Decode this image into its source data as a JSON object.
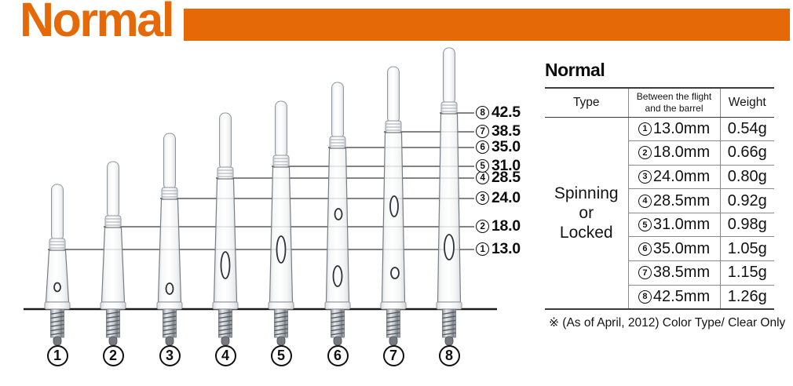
{
  "header": {
    "title": "Normal"
  },
  "colors": {
    "accent": "#E66908"
  },
  "diagram": {
    "shafts": [
      {
        "num": "1",
        "size_mm": 13.0,
        "size_label": "13.0"
      },
      {
        "num": "2",
        "size_mm": 18.0,
        "size_label": "18.0"
      },
      {
        "num": "3",
        "size_mm": 24.0,
        "size_label": "24.0"
      },
      {
        "num": "4",
        "size_mm": 28.5,
        "size_label": "28.5"
      },
      {
        "num": "5",
        "size_mm": 31.0,
        "size_label": "31.0"
      },
      {
        "num": "6",
        "size_mm": 35.0,
        "size_label": "35.0"
      },
      {
        "num": "7",
        "size_mm": 38.5,
        "size_label": "38.5"
      },
      {
        "num": "8",
        "size_mm": 42.5,
        "size_label": "42.5"
      }
    ]
  },
  "spec_table": {
    "title": "Normal",
    "columns": [
      {
        "label": "Type"
      },
      {
        "label": "Between the flight and the barrel",
        "lines": [
          "Between the flight",
          "and the barrel"
        ]
      },
      {
        "label": "Weight"
      }
    ],
    "type_lines": [
      "Spinning",
      "or",
      "Locked"
    ],
    "rows": [
      {
        "num": "1",
        "size": "13.0mm",
        "weight": "0.54g"
      },
      {
        "num": "2",
        "size": "18.0mm",
        "weight": "0.66g"
      },
      {
        "num": "3",
        "size": "24.0mm",
        "weight": "0.80g"
      },
      {
        "num": "4",
        "size": "28.5mm",
        "weight": "0.92g"
      },
      {
        "num": "5",
        "size": "31.0mm",
        "weight": "0.98g"
      },
      {
        "num": "6",
        "size": "35.0mm",
        "weight": "1.05g"
      },
      {
        "num": "7",
        "size": "38.5mm",
        "weight": "1.15g"
      },
      {
        "num": "8",
        "size": "42.5mm",
        "weight": "1.26g"
      }
    ],
    "footnote": "※ (As of April, 2012) Color Type/ Clear Only"
  }
}
